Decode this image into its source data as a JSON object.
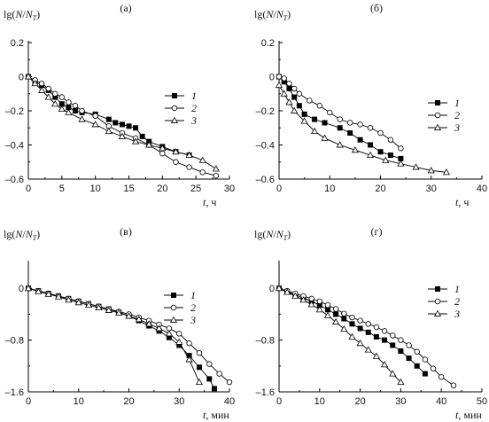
{
  "chart_data": [
    {
      "panel": "(а)",
      "type": "line",
      "ylabel": "lg(N/N_T)",
      "xlabel": "t, ч",
      "xlim": [
        0,
        30
      ],
      "ylim": [
        -0.6,
        0.2
      ],
      "xticks": [
        0,
        5,
        10,
        15,
        20,
        25,
        30
      ],
      "yticks": [
        0.2,
        0,
        -0.2,
        -0.4,
        -0.6
      ],
      "ytick_labels": [
        "0.2",
        "0",
        "–0.2",
        "–0.4",
        "–0.6"
      ],
      "legend": "right",
      "series": [
        {
          "name": "1",
          "marker": "square",
          "x": [
            0,
            1,
            2,
            3,
            4,
            5,
            6,
            7,
            8,
            10,
            12,
            13,
            14,
            15,
            16,
            17,
            18,
            20,
            22,
            24
          ],
          "y": [
            0,
            -0.03,
            -0.05,
            -0.08,
            -0.12,
            -0.16,
            -0.18,
            -0.2,
            -0.21,
            -0.22,
            -0.25,
            -0.27,
            -0.28,
            -0.29,
            -0.3,
            -0.35,
            -0.38,
            -0.41,
            -0.44,
            -0.46
          ]
        },
        {
          "name": "2",
          "marker": "circle",
          "x": [
            0,
            1,
            2,
            3,
            4,
            5,
            6,
            7,
            8,
            10,
            12,
            14,
            16,
            18,
            20,
            22,
            24,
            26,
            28
          ],
          "y": [
            0,
            -0.02,
            -0.04,
            -0.07,
            -0.1,
            -0.12,
            -0.15,
            -0.17,
            -0.2,
            -0.23,
            -0.29,
            -0.33,
            -0.36,
            -0.4,
            -0.45,
            -0.5,
            -0.53,
            -0.56,
            -0.58
          ]
        },
        {
          "name": "3",
          "marker": "triangle",
          "x": [
            0,
            1,
            2,
            3,
            4,
            5,
            6,
            8,
            10,
            12,
            14,
            16,
            18,
            20,
            22,
            24,
            26,
            28
          ],
          "y": [
            0,
            -0.04,
            -0.08,
            -0.12,
            -0.16,
            -0.19,
            -0.21,
            -0.25,
            -0.28,
            -0.32,
            -0.35,
            -0.38,
            -0.4,
            -0.42,
            -0.44,
            -0.46,
            -0.49,
            -0.54
          ]
        }
      ]
    },
    {
      "panel": "(б)",
      "type": "line",
      "ylabel": "lg(N/N_T)",
      "xlabel": "t, ч",
      "xlim": [
        0,
        40
      ],
      "ylim": [
        -0.6,
        0.2
      ],
      "xticks": [
        0,
        10,
        20,
        30,
        40
      ],
      "yticks": [
        0.2,
        0,
        -0.2,
        -0.4,
        -0.6
      ],
      "ytick_labels": [
        "0.2",
        "0",
        "–0.2",
        "–0.4",
        "–0.6"
      ],
      "legend": "right",
      "series": [
        {
          "name": "1",
          "marker": "square",
          "x": [
            0,
            1,
            2,
            3,
            4,
            5,
            7,
            9,
            12,
            14,
            16,
            18,
            20,
            22,
            24
          ],
          "y": [
            0,
            -0.03,
            -0.07,
            -0.12,
            -0.17,
            -0.22,
            -0.25,
            -0.27,
            -0.3,
            -0.33,
            -0.37,
            -0.4,
            -0.44,
            -0.46,
            -0.48
          ]
        },
        {
          "name": "2",
          "marker": "circle",
          "x": [
            0,
            1,
            2,
            3,
            4,
            6,
            8,
            10,
            12,
            14,
            16,
            18,
            20,
            22,
            24
          ],
          "y": [
            0,
            -0.01,
            -0.04,
            -0.07,
            -0.1,
            -0.14,
            -0.17,
            -0.21,
            -0.25,
            -0.27,
            -0.28,
            -0.3,
            -0.33,
            -0.37,
            -0.42
          ]
        },
        {
          "name": "3",
          "marker": "triangle",
          "x": [
            0,
            1,
            2,
            3,
            5,
            7,
            9,
            12,
            15,
            18,
            21,
            24,
            27,
            30,
            33
          ],
          "y": [
            -0.05,
            -0.1,
            -0.15,
            -0.2,
            -0.26,
            -0.32,
            -0.36,
            -0.4,
            -0.43,
            -0.46,
            -0.49,
            -0.51,
            -0.53,
            -0.55,
            -0.56
          ]
        }
      ]
    },
    {
      "panel": "(в)",
      "type": "line",
      "ylabel": "lg(N/N_T)",
      "xlabel": "t, мин",
      "xlim": [
        0,
        40
      ],
      "ylim": [
        -1.6,
        0.4
      ],
      "xticks": [
        0,
        10,
        20,
        30,
        40
      ],
      "yticks": [
        0,
        -0.8,
        -1.6
      ],
      "ytick_labels": [
        "0",
        "–0.8",
        "–1.6"
      ],
      "legend": "right",
      "series": [
        {
          "name": "1",
          "marker": "square",
          "x": [
            0,
            2,
            4,
            6,
            8,
            10,
            12,
            14,
            16,
            18,
            20,
            22,
            24,
            26,
            28,
            30,
            32,
            34,
            36,
            37
          ],
          "y": [
            0,
            -0.04,
            -0.08,
            -0.12,
            -0.16,
            -0.2,
            -0.24,
            -0.28,
            -0.32,
            -0.37,
            -0.43,
            -0.5,
            -0.58,
            -0.66,
            -0.76,
            -0.88,
            -1.04,
            -1.22,
            -1.4,
            -1.55
          ]
        },
        {
          "name": "2",
          "marker": "circle",
          "x": [
            0,
            2,
            4,
            6,
            8,
            10,
            12,
            14,
            16,
            18,
            20,
            22,
            24,
            26,
            28,
            30,
            32,
            34,
            36,
            38,
            40
          ],
          "y": [
            0,
            -0.04,
            -0.08,
            -0.12,
            -0.16,
            -0.2,
            -0.24,
            -0.28,
            -0.32,
            -0.36,
            -0.4,
            -0.45,
            -0.5,
            -0.56,
            -0.62,
            -0.7,
            -0.85,
            -1.0,
            -1.17,
            -1.32,
            -1.45
          ]
        },
        {
          "name": "3",
          "marker": "triangle",
          "x": [
            0,
            2,
            4,
            6,
            8,
            10,
            12,
            14,
            16,
            18,
            20,
            22,
            24,
            26,
            28,
            30,
            32,
            34
          ],
          "y": [
            0,
            -0.05,
            -0.09,
            -0.13,
            -0.18,
            -0.22,
            -0.26,
            -0.3,
            -0.34,
            -0.38,
            -0.43,
            -0.48,
            -0.55,
            -0.62,
            -0.7,
            -0.83,
            -1.1,
            -1.45
          ]
        }
      ]
    },
    {
      "panel": "(г)",
      "type": "line",
      "ylabel": "lg(N/N_T)",
      "xlabel": "t, мин",
      "xlim": [
        0,
        50
      ],
      "ylim": [
        -1.6,
        0.4
      ],
      "xticks": [
        0,
        10,
        20,
        30,
        40,
        50
      ],
      "yticks": [
        0,
        -0.8,
        -1.6
      ],
      "ytick_labels": [
        "0",
        "–0.8",
        "–1.6"
      ],
      "legend": "right",
      "series": [
        {
          "name": "1",
          "marker": "square",
          "x": [
            0,
            2,
            4,
            6,
            8,
            10,
            12,
            14,
            16,
            18,
            20,
            22,
            24,
            26,
            28,
            30,
            32,
            34,
            36
          ],
          "y": [
            0,
            -0.05,
            -0.1,
            -0.15,
            -0.2,
            -0.26,
            -0.33,
            -0.4,
            -0.47,
            -0.55,
            -0.62,
            -0.68,
            -0.75,
            -0.8,
            -0.88,
            -0.97,
            -1.08,
            -1.2,
            -1.32
          ]
        },
        {
          "name": "2",
          "marker": "circle",
          "x": [
            0,
            2,
            4,
            6,
            8,
            10,
            12,
            14,
            16,
            18,
            20,
            22,
            24,
            26,
            28,
            30,
            32,
            34,
            36,
            38,
            40,
            43
          ],
          "y": [
            0,
            -0.04,
            -0.08,
            -0.12,
            -0.16,
            -0.2,
            -0.26,
            -0.32,
            -0.39,
            -0.45,
            -0.5,
            -0.55,
            -0.6,
            -0.66,
            -0.73,
            -0.8,
            -0.88,
            -0.98,
            -1.1,
            -1.24,
            -1.37,
            -1.5
          ]
        },
        {
          "name": "3",
          "marker": "triangle",
          "x": [
            0,
            2,
            4,
            6,
            8,
            10,
            12,
            14,
            16,
            18,
            20,
            22,
            24,
            26,
            28,
            30
          ],
          "y": [
            0,
            -0.06,
            -0.12,
            -0.18,
            -0.25,
            -0.33,
            -0.42,
            -0.52,
            -0.63,
            -0.75,
            -0.85,
            -0.95,
            -1.05,
            -1.18,
            -1.32,
            -1.45
          ]
        }
      ]
    }
  ]
}
